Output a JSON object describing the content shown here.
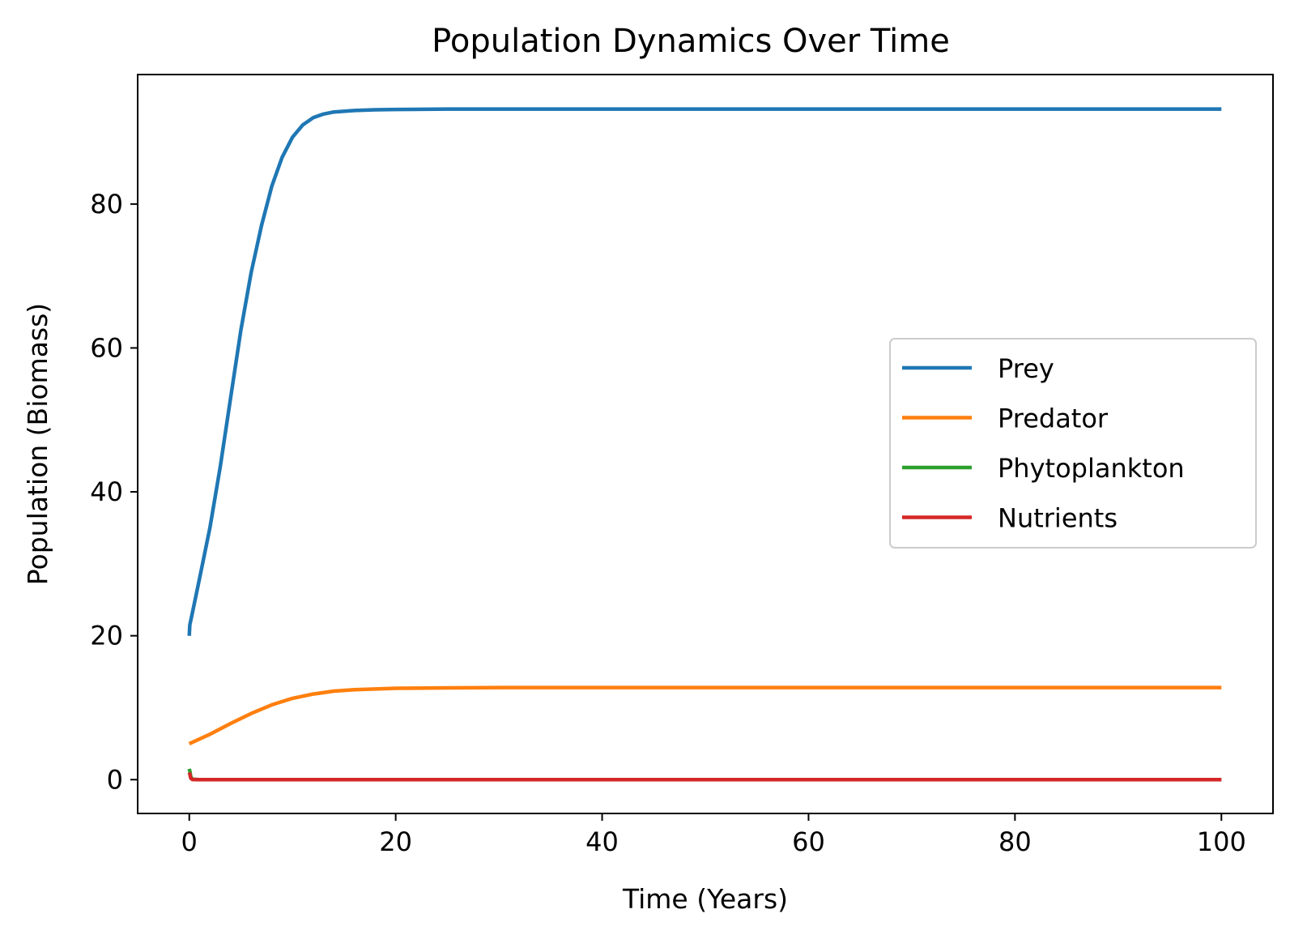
{
  "chart_data": {
    "type": "line",
    "title": "Population Dynamics Over Time",
    "xlabel": "Time (Years)",
    "ylabel": "Population (Biomass)",
    "xlim": [
      -5,
      105
    ],
    "ylim": [
      -4.7,
      98
    ],
    "xticks": [
      0,
      20,
      40,
      60,
      80,
      100
    ],
    "yticks": [
      0,
      20,
      40,
      60,
      80
    ],
    "grid": false,
    "legend_position": "center-right",
    "series": [
      {
        "name": "Prey",
        "color": "#1f77b4",
        "x": [
          0,
          0.05,
          0.2,
          1,
          2,
          3,
          4,
          5,
          6,
          7,
          8,
          9,
          10,
          11,
          12,
          13,
          14,
          16,
          18,
          20,
          25,
          30,
          100
        ],
        "y": [
          20,
          21.5,
          22.5,
          28,
          35,
          43.5,
          53,
          62.5,
          70.5,
          77,
          82.5,
          86.5,
          89.3,
          91,
          92,
          92.5,
          92.8,
          93,
          93.1,
          93.15,
          93.2,
          93.2,
          93.2
        ]
      },
      {
        "name": "Predator",
        "color": "#ff7f0e",
        "x": [
          0,
          2,
          4,
          6,
          8,
          10,
          12,
          14,
          16,
          18,
          20,
          25,
          30,
          100
        ],
        "y": [
          5,
          6.3,
          7.8,
          9.2,
          10.4,
          11.3,
          11.9,
          12.3,
          12.5,
          12.6,
          12.7,
          12.75,
          12.8,
          12.8
        ]
      },
      {
        "name": "Phytoplankton",
        "color": "#2ca02c",
        "x": [
          0,
          0.05,
          0.15,
          0.3,
          1,
          100
        ],
        "y": [
          1.5,
          1.2,
          0.4,
          0.05,
          0,
          0
        ]
      },
      {
        "name": "Nutrients",
        "color": "#d62728",
        "x": [
          0,
          0.05,
          0.15,
          0.3,
          1,
          100
        ],
        "y": [
          1.0,
          0.8,
          0.2,
          0.02,
          0,
          0
        ]
      }
    ]
  }
}
